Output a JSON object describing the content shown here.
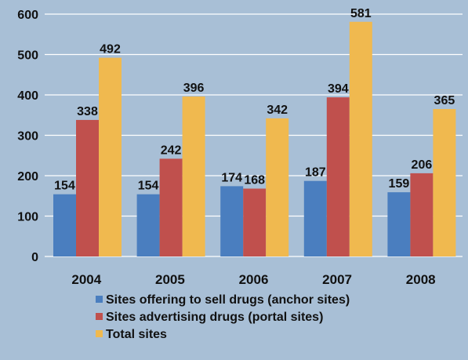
{
  "chart_data": {
    "type": "bar",
    "categories": [
      "2004",
      "2005",
      "2006",
      "2007",
      "2008"
    ],
    "series": [
      {
        "name": "Sites offering to sell drugs (anchor sites)",
        "values": [
          154,
          154,
          174,
          187,
          159
        ],
        "color": "#4a7ebf"
      },
      {
        "name": "Sites advertising drugs (portal sites)",
        "values": [
          338,
          242,
          168,
          394,
          206
        ],
        "color": "#c0504d"
      },
      {
        "name": "Total sites",
        "values": [
          492,
          396,
          342,
          581,
          365
        ],
        "color": "#f0b94f"
      }
    ],
    "ylim": [
      0,
      600
    ],
    "yticks": [
      0,
      100,
      200,
      300,
      400,
      500,
      600
    ],
    "grid": true,
    "legend": "bottom",
    "background": "#a8bfd6",
    "gridline_color": "#ffffff"
  }
}
